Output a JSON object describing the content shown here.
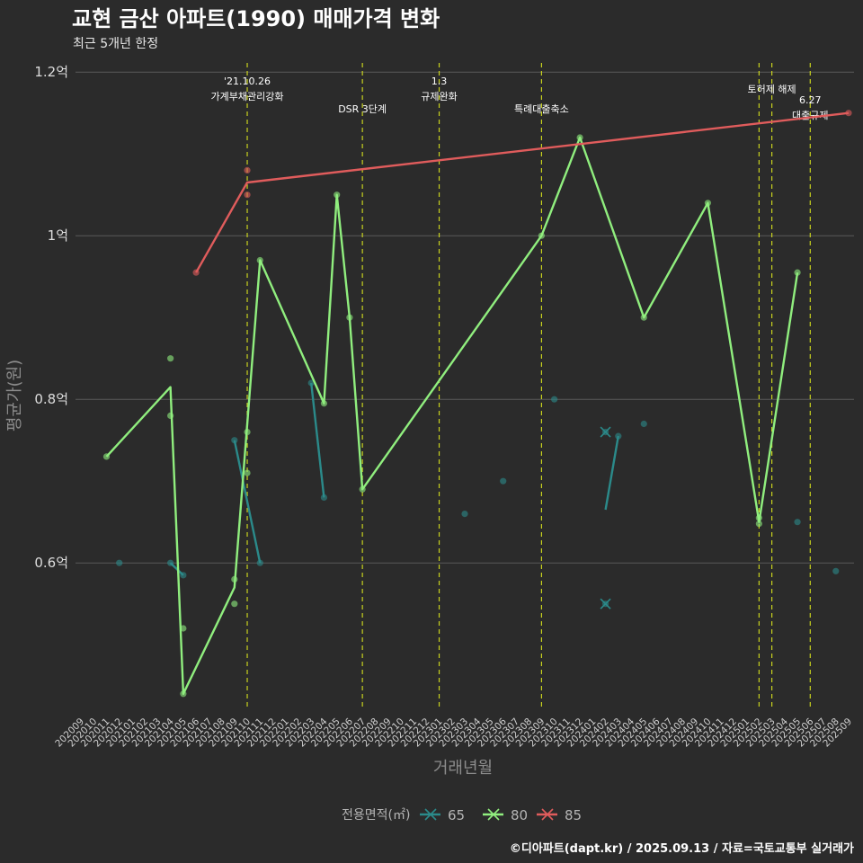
{
  "colors": {
    "background": "#2b2b2b",
    "grid": "#5a5a5a",
    "event_line": "#c8d21e",
    "series_65": "#2b8a8a",
    "series_80": "#90ee7e",
    "series_85": "#e05c5c"
  },
  "chart_data": {
    "type": "line",
    "title": "교현 금산 아파트(1990) 매매가격 변화",
    "subtitle": "최근 5개년 한정",
    "xlabel": "거래년월",
    "ylabel": "평균가(원)",
    "ylim": [
      0.42,
      1.22
    ],
    "y_ticks": [
      {
        "value": 0.6,
        "label": "0.6억"
      },
      {
        "value": 0.8,
        "label": "0.8억"
      },
      {
        "value": 1.0,
        "label": "1억"
      },
      {
        "value": 1.2,
        "label": "1.2억"
      }
    ],
    "categories": [
      "202009",
      "202010",
      "202011",
      "202012",
      "202101",
      "202102",
      "202103",
      "202104",
      "202105",
      "202106",
      "202107",
      "202108",
      "202109",
      "202110",
      "202111",
      "202112",
      "202201",
      "202202",
      "202203",
      "202204",
      "202205",
      "202206",
      "202207",
      "202208",
      "202209",
      "202210",
      "202211",
      "202212",
      "202301",
      "202302",
      "202303",
      "202304",
      "202305",
      "202306",
      "202307",
      "202308",
      "202309",
      "202310",
      "202311",
      "202312",
      "202401",
      "202402",
      "202403",
      "202404",
      "202405",
      "202406",
      "202407",
      "202408",
      "202409",
      "202410",
      "202411",
      "202412",
      "202501",
      "202502",
      "202503",
      "202504",
      "202505",
      "202506",
      "202507",
      "202508",
      "202509"
    ],
    "events": [
      {
        "x": "202110",
        "date": "'21.10.26",
        "label": "가계부채관리강화"
      },
      {
        "x": "202207",
        "date": "",
        "label": "DSR 3단계"
      },
      {
        "x": "202301",
        "date": "1.3",
        "label": "규제완화"
      },
      {
        "x": "202309",
        "date": "",
        "label": "특례대출축소"
      },
      {
        "x": "202502",
        "date": "",
        "label": ""
      },
      {
        "x": "202503",
        "date": "",
        "label": "토허제 해제"
      },
      {
        "x": "202506",
        "date": "6.27",
        "label": "대출규제"
      }
    ],
    "series": [
      {
        "name": "65",
        "line": [
          [
            [
              "202104",
              0.6
            ],
            [
              "202105",
              0.585
            ]
          ],
          [
            [
              "202109",
              0.75
            ],
            [
              "202111",
              0.6
            ]
          ],
          [
            [
              "202203",
              0.82
            ],
            [
              "202204",
              0.68
            ]
          ],
          [
            [
              "202402",
              0.665
            ],
            [
              "202403",
              0.755
            ]
          ]
        ],
        "points": [
          [
            "202012",
            0.6
          ],
          [
            "202104",
            0.6
          ],
          [
            "202105",
            0.585
          ],
          [
            "202109",
            0.75
          ],
          [
            "202111",
            0.6
          ],
          [
            "202203",
            0.82
          ],
          [
            "202204",
            0.68
          ],
          [
            "202303",
            0.66
          ],
          [
            "202306",
            0.7
          ],
          [
            "202310",
            0.8
          ],
          [
            "202403",
            0.755
          ],
          [
            "202405",
            0.77
          ],
          [
            "202505",
            0.65
          ],
          [
            "202508",
            0.59
          ]
        ],
        "crosses": [
          [
            "202402",
            0.76
          ],
          [
            "202402",
            0.55
          ]
        ]
      },
      {
        "name": "80",
        "line": [
          [
            [
              "202011",
              0.73
            ],
            [
              "202104",
              0.815
            ],
            [
              "202105",
              0.44
            ],
            [
              "202109",
              0.57
            ],
            [
              "202111",
              0.97
            ],
            [
              "202204",
              0.795
            ],
            [
              "202205",
              1.05
            ],
            [
              "202206",
              0.9
            ],
            [
              "202207",
              0.69
            ],
            [
              "202309",
              1.0
            ],
            [
              "202312",
              1.12
            ],
            [
              "202405",
              0.9
            ],
            [
              "202410",
              1.04
            ],
            [
              "202502",
              0.65
            ],
            [
              "202505",
              0.955
            ]
          ]
        ],
        "points": [
          [
            "202011",
            0.73
          ],
          [
            "202104",
            0.85
          ],
          [
            "202104",
            0.78
          ],
          [
            "202105",
            0.52
          ],
          [
            "202105",
            0.44
          ],
          [
            "202109",
            0.58
          ],
          [
            "202109",
            0.55
          ],
          [
            "202110",
            0.71
          ],
          [
            "202110",
            0.76
          ],
          [
            "202111",
            0.97
          ],
          [
            "202204",
            0.795
          ],
          [
            "202205",
            1.05
          ],
          [
            "202206",
            0.9
          ],
          [
            "202207",
            0.69
          ],
          [
            "202309",
            1.0
          ],
          [
            "202312",
            1.12
          ],
          [
            "202405",
            0.9
          ],
          [
            "202410",
            1.04
          ],
          [
            "202502",
            0.655
          ],
          [
            "202502",
            0.648
          ],
          [
            "202505",
            0.955
          ]
        ]
      },
      {
        "name": "85",
        "line": [
          [
            [
              "202106",
              0.955
            ],
            [
              "202110",
              1.065
            ],
            [
              "202509",
              1.15
            ]
          ]
        ],
        "points": [
          [
            "202106",
            0.955
          ],
          [
            "202110",
            1.08
          ],
          [
            "202110",
            1.05
          ],
          [
            "202509",
            1.15
          ]
        ]
      }
    ],
    "legend": {
      "title": "전용면적(㎡)",
      "position": "bottom",
      "entries": [
        "65",
        "80",
        "85"
      ]
    }
  },
  "caption": "©디아파트(dapt.kr) / 2025.09.13 / 자료=국토교통부 실거래가"
}
